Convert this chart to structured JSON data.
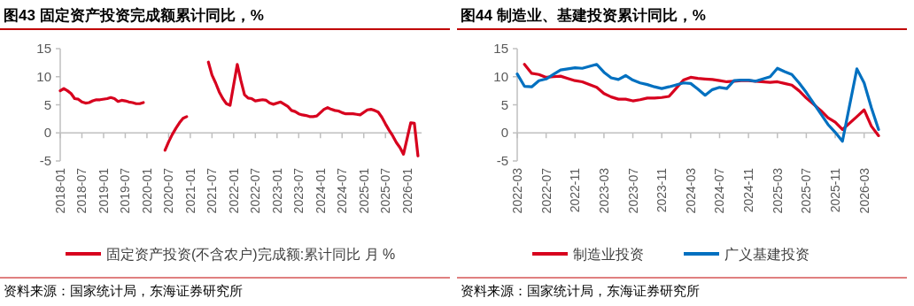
{
  "chart_data": [
    {
      "type": "line",
      "title": "图43  固定资产投资完成额累计同比，%",
      "legend": "bottom",
      "annotations": [
        "资料来源：国家统计局，东海证券研究所"
      ],
      "xlim": [
        "2018-01",
        "2026-05"
      ],
      "ylim": [
        -5,
        15
      ],
      "yticks": [
        -5,
        0,
        5,
        10,
        15
      ],
      "xticks": [
        "2018-01",
        "2018-07",
        "2019-01",
        "2019-07",
        "2020-01",
        "2020-07",
        "2021-01",
        "2021-07",
        "2022-01",
        "2022-07",
        "2023-01",
        "2023-07",
        "2024-01",
        "2024-07",
        "2025-01",
        "2025-07",
        "2026-01"
      ],
      "x": [
        "2018-01",
        "2018-02",
        "2018-03",
        "2018-04",
        "2018-05",
        "2018-06",
        "2018-07",
        "2018-08",
        "2018-09",
        "2018-10",
        "2018-11",
        "2018-12",
        "2019-02",
        "2019-03",
        "2019-04",
        "2019-05",
        "2019-06",
        "2019-07",
        "2019-08",
        "2019-09",
        "2019-10",
        "2019-11",
        "2019-12",
        "2020-02",
        "2020-03",
        "2020-04",
        "2020-05",
        "2020-06",
        "2020-07",
        "2020-08",
        "2020-09",
        "2020-10",
        "2020-11",
        "2020-12",
        "2021-02",
        "2021-03",
        "2021-04",
        "2021-05",
        "2021-06",
        "2021-07",
        "2021-08",
        "2021-09",
        "2021-10",
        "2021-11",
        "2021-12",
        "2022-02",
        "2022-03",
        "2022-04",
        "2022-05",
        "2022-06",
        "2022-07",
        "2022-08",
        "2022-09",
        "2022-10",
        "2022-11",
        "2022-12",
        "2023-02",
        "2023-03",
        "2023-04",
        "2023-05",
        "2023-06",
        "2023-07",
        "2023-08",
        "2023-09",
        "2023-10",
        "2023-11",
        "2023-12",
        "2024-02",
        "2024-03",
        "2024-04",
        "2024-05",
        "2024-06",
        "2024-07",
        "2024-08",
        "2024-09",
        "2024-10",
        "2024-11",
        "2024-12",
        "2025-02",
        "2025-03",
        "2025-04",
        "2025-05",
        "2025-06",
        "2025-07",
        "2025-08",
        "2025-09",
        "2025-10",
        "2025-11",
        "2025-12",
        "2026-02",
        "2026-03",
        "2026-04"
      ],
      "series": [
        {
          "name": "固定资产投资(不含农户)完成额:累计同比 月 %",
          "color": "#d7001e",
          "values": [
            7.5,
            7.9,
            7.5,
            7.0,
            6.1,
            6.0,
            5.5,
            5.3,
            5.4,
            5.7,
            5.9,
            5.9,
            6.1,
            6.3,
            6.1,
            5.6,
            5.8,
            5.7,
            5.5,
            5.4,
            5.2,
            5.2,
            5.4,
            null,
            null,
            null,
            null,
            -3.1,
            -1.6,
            -0.3,
            0.8,
            1.8,
            2.6,
            2.9,
            null,
            null,
            null,
            null,
            12.6,
            10.3,
            8.9,
            7.3,
            6.1,
            5.2,
            4.9,
            12.2,
            9.3,
            6.8,
            6.2,
            6.1,
            5.7,
            5.8,
            5.9,
            5.8,
            5.3,
            5.1,
            5.5,
            5.1,
            4.7,
            4.0,
            3.8,
            3.4,
            3.2,
            3.1,
            2.9,
            2.9,
            3.0,
            4.2,
            4.5,
            4.2,
            4.0,
            3.9,
            3.6,
            3.4,
            3.4,
            3.4,
            3.3,
            3.2,
            4.1,
            4.2,
            4.0,
            3.7,
            2.8,
            1.6,
            0.5,
            -0.5,
            -1.7,
            -2.6,
            -3.8,
            1.8,
            1.7,
            -4.1
          ]
        }
      ]
    },
    {
      "type": "line",
      "title": "图44  制造业、基建投资累计同比，%",
      "legend": "bottom",
      "annotations": [
        "资料来源：国家统计局，东海证券研究所"
      ],
      "xlim": [
        "2022-03",
        "2026-05"
      ],
      "ylim": [
        -5,
        15
      ],
      "yticks": [
        -5,
        0,
        5,
        10,
        15
      ],
      "xticks": [
        "2022-03",
        "2022-07",
        "2022-11",
        "2023-03",
        "2023-07",
        "2023-11",
        "2024-03",
        "2024-07",
        "2024-11",
        "2025-03",
        "2025-07",
        "2025-11",
        "2026-03"
      ],
      "x": [
        "2022-03",
        "2022-04",
        "2022-05",
        "2022-06",
        "2022-07",
        "2022-08",
        "2022-09",
        "2022-10",
        "2022-11",
        "2022-12",
        "2023-02",
        "2023-03",
        "2023-04",
        "2023-05",
        "2023-06",
        "2023-07",
        "2023-08",
        "2023-09",
        "2023-10",
        "2023-11",
        "2023-12",
        "2024-02",
        "2024-03",
        "2024-04",
        "2024-05",
        "2024-06",
        "2024-07",
        "2024-08",
        "2024-09",
        "2024-10",
        "2024-11",
        "2024-12",
        "2025-02",
        "2025-03",
        "2025-04",
        "2025-05",
        "2025-06",
        "2025-07",
        "2025-08",
        "2025-09",
        "2025-10",
        "2025-11",
        "2025-12",
        "2026-02",
        "2026-03",
        "2026-04",
        "2026-05"
      ],
      "series": [
        {
          "name": "制造业投资",
          "color": "#d7001e",
          "values": [
            null,
            12.2,
            10.6,
            10.4,
            9.9,
            10.0,
            10.1,
            9.7,
            9.3,
            9.1,
            8.1,
            7.0,
            6.4,
            6.0,
            6.0,
            5.7,
            5.9,
            6.2,
            6.2,
            6.3,
            6.5,
            9.4,
            9.9,
            9.7,
            9.6,
            9.5,
            9.3,
            9.1,
            9.2,
            9.3,
            9.3,
            9.2,
            9.0,
            9.1,
            8.8,
            8.5,
            7.5,
            6.2,
            5.1,
            4.0,
            2.7,
            1.9,
            0.6,
            2.9,
            4.1,
            1.2,
            -0.5
          ]
        },
        {
          "name": "广义基建投资",
          "color": "#0070c0",
          "values": [
            10.5,
            8.3,
            8.2,
            9.3,
            9.6,
            10.4,
            11.2,
            11.4,
            11.6,
            11.5,
            12.2,
            10.8,
            9.8,
            9.5,
            10.2,
            9.4,
            8.9,
            8.6,
            8.2,
            7.9,
            8.2,
            8.9,
            8.8,
            7.8,
            6.7,
            7.7,
            8.1,
            7.9,
            9.3,
            9.4,
            9.4,
            9.2,
            10.0,
            11.5,
            10.9,
            10.4,
            8.9,
            7.2,
            5.3,
            3.4,
            1.5,
            0.1,
            -1.5,
            11.4,
            8.9,
            4.5,
            0.6
          ]
        }
      ]
    }
  ]
}
